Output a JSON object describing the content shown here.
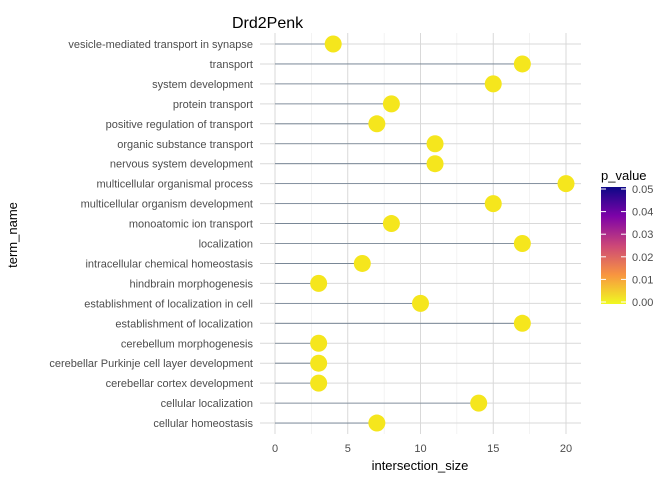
{
  "chart_data": {
    "type": "scatter",
    "title": "Drd2Penk",
    "xlabel": "intersection_size",
    "ylabel": "term_name",
    "xlim": [
      0,
      21
    ],
    "x_ticks": [
      0,
      5,
      10,
      15,
      20
    ],
    "grid": true,
    "legend": {
      "title": "p_value",
      "placement": "right",
      "ticks": [
        "0.05",
        "0.04",
        "0.03",
        "0.02",
        "0.01",
        "0.00"
      ],
      "range": [
        0,
        0.05
      ]
    },
    "colors": {
      "point": "#F5E61D",
      "stem": "#6B7B8C",
      "gradient": [
        "#0D0887",
        "#7E03A8",
        "#CC4778",
        "#F89540",
        "#F0F921"
      ]
    },
    "categories": [
      "vesicle-mediated transport in synapse",
      "transport",
      "system development",
      "protein transport",
      "positive regulation of transport",
      "organic substance transport",
      "nervous system development",
      "multicellular organismal process",
      "multicellular organism development",
      "monoatomic ion transport",
      "localization",
      "intracellular chemical homeostasis",
      "hindbrain morphogenesis",
      "establishment of localization in cell",
      "establishment of localization",
      "cerebellum morphogenesis",
      "cerebellar Purkinje cell layer development",
      "cerebellar cortex development",
      "cellular localization",
      "cellular homeostasis"
    ],
    "values": [
      4,
      17,
      15,
      8,
      7,
      11,
      11,
      20,
      15,
      8,
      17,
      6,
      3,
      10,
      17,
      3,
      3,
      3,
      14,
      7
    ]
  }
}
